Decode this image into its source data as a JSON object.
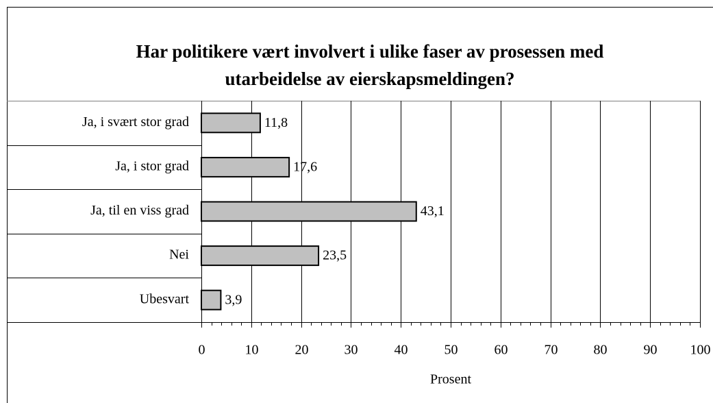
{
  "chart_data": {
    "type": "bar",
    "orientation": "horizontal",
    "title": "Har politikere vært involvert i ulike faser av prosessen med utarbeidelse av eierskapsmeldingen?",
    "title_lines": [
      "Har politikere vært involvert i ulike faser av prosessen med",
      "utarbeidelse av eierskapsmeldingen?"
    ],
    "categories": [
      "Ja, i svært stor grad",
      "Ja, i stor grad",
      "Ja, til en viss grad",
      "Nei",
      "Ubesvart"
    ],
    "values": [
      11.8,
      17.6,
      43.1,
      23.5,
      3.9
    ],
    "value_labels": [
      "11,8",
      "17,6",
      "43,1",
      "23,5",
      "3,9"
    ],
    "color": "#c0c0c0",
    "xlabel": "Prosent",
    "xlim": [
      0,
      100
    ],
    "xticks": [
      0,
      10,
      20,
      30,
      40,
      50,
      60,
      70,
      80,
      90,
      100
    ],
    "xminorticks": [
      2,
      4,
      6,
      8,
      12,
      14,
      16,
      18,
      22,
      24,
      26,
      28,
      32,
      34,
      36,
      38,
      42,
      44,
      46,
      48,
      52,
      54,
      56,
      58,
      62,
      64,
      66,
      68,
      72,
      74,
      76,
      78,
      82,
      84,
      86,
      88,
      92,
      94,
      96,
      98
    ],
    "grid": true
  }
}
